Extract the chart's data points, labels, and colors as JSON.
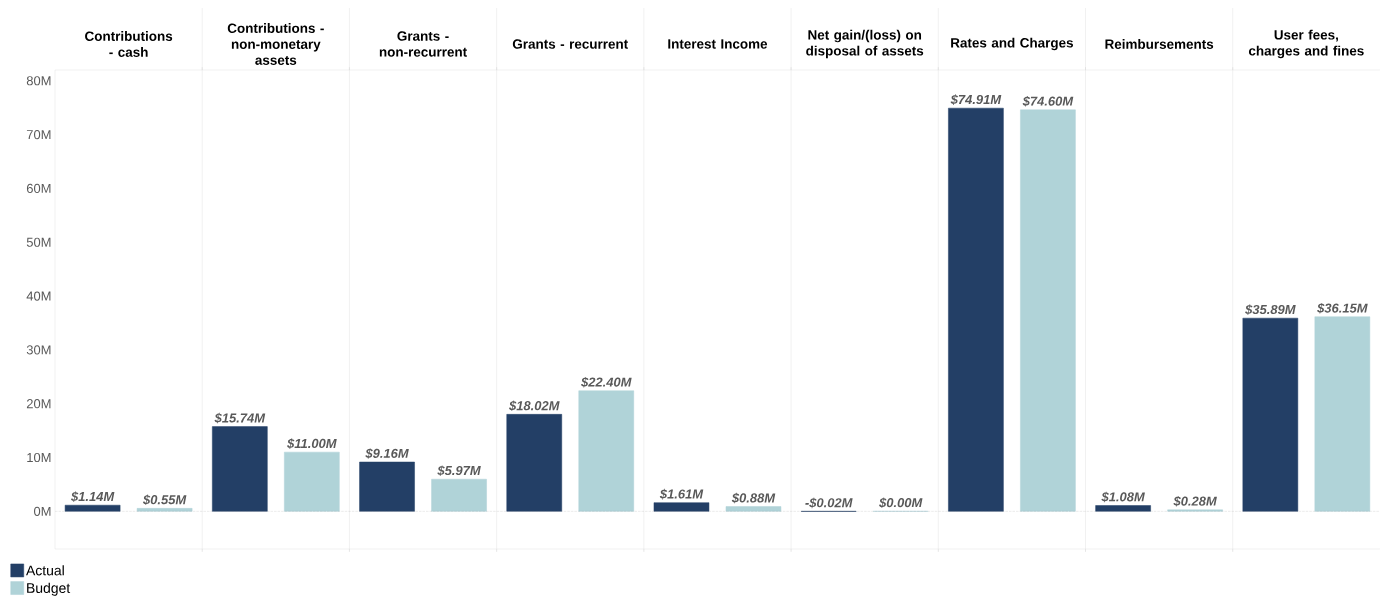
{
  "chart_data": {
    "type": "bar",
    "categories": [
      "Contributions - cash",
      "Contributions - non-monetary assets",
      "Grants - non-recurrent",
      "Grants - recurrent",
      "Interest Income",
      "Net gain/(loss) on disposal of assets",
      "Rates and Charges",
      "Reimbursements",
      "User fees, charges and fines"
    ],
    "series": [
      {
        "name": "Actual",
        "color": "#233f66",
        "values": [
          1.14,
          15.74,
          9.16,
          18.02,
          1.61,
          -0.02,
          74.91,
          1.08,
          35.89
        ],
        "value_labels": [
          "$1.14M",
          "$15.74M",
          "$9.16M",
          "$18.02M",
          "$1.61M",
          "-$0.02M",
          "$74.91M",
          "$1.08M",
          "$35.89M"
        ]
      },
      {
        "name": "Budget",
        "color": "#b0d3d8",
        "values": [
          0.55,
          11.0,
          5.97,
          22.4,
          0.88,
          0.0,
          74.6,
          0.28,
          36.15
        ],
        "value_labels": [
          "$0.55M",
          "$11.00M",
          "$5.97M",
          "$22.40M",
          "$0.88M",
          "$0.00M",
          "$74.60M",
          "$0.28M",
          "$36.15M"
        ]
      }
    ],
    "ylim": [
      -7,
      82
    ],
    "yticks": [
      {
        "value": 0,
        "label": "0M"
      },
      {
        "value": 10,
        "label": "10M"
      },
      {
        "value": 20,
        "label": "20M"
      },
      {
        "value": 30,
        "label": "30M"
      },
      {
        "value": 40,
        "label": "40M"
      },
      {
        "value": 50,
        "label": "50M"
      },
      {
        "value": 60,
        "label": "60M"
      },
      {
        "value": 70,
        "label": "70M"
      },
      {
        "value": 80,
        "label": "80M"
      }
    ],
    "ref_lines": [
      {
        "axis": "y",
        "value": 0,
        "color": "#808080",
        "line_style": "dotted"
      }
    ],
    "legend": "bottom left"
  }
}
